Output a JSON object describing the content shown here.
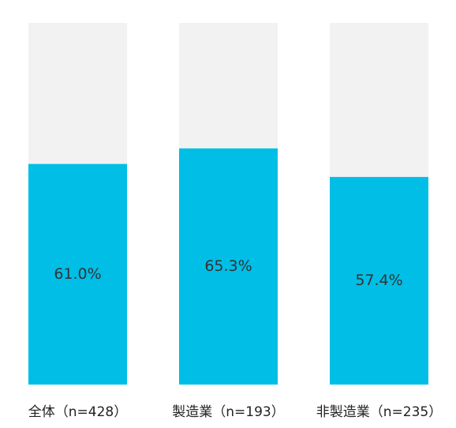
{
  "chart_data": {
    "type": "bar",
    "categories": [
      "全体（n=428）",
      "製造業（n=193）",
      "非製造業（n=235）"
    ],
    "values": [
      61.0,
      65.3,
      57.4
    ],
    "value_labels": [
      "61.0%",
      "65.3%",
      "57.4%"
    ],
    "color": "#00bee6",
    "background_color": "#f2f2f2",
    "ylim": [
      0,
      100
    ]
  }
}
